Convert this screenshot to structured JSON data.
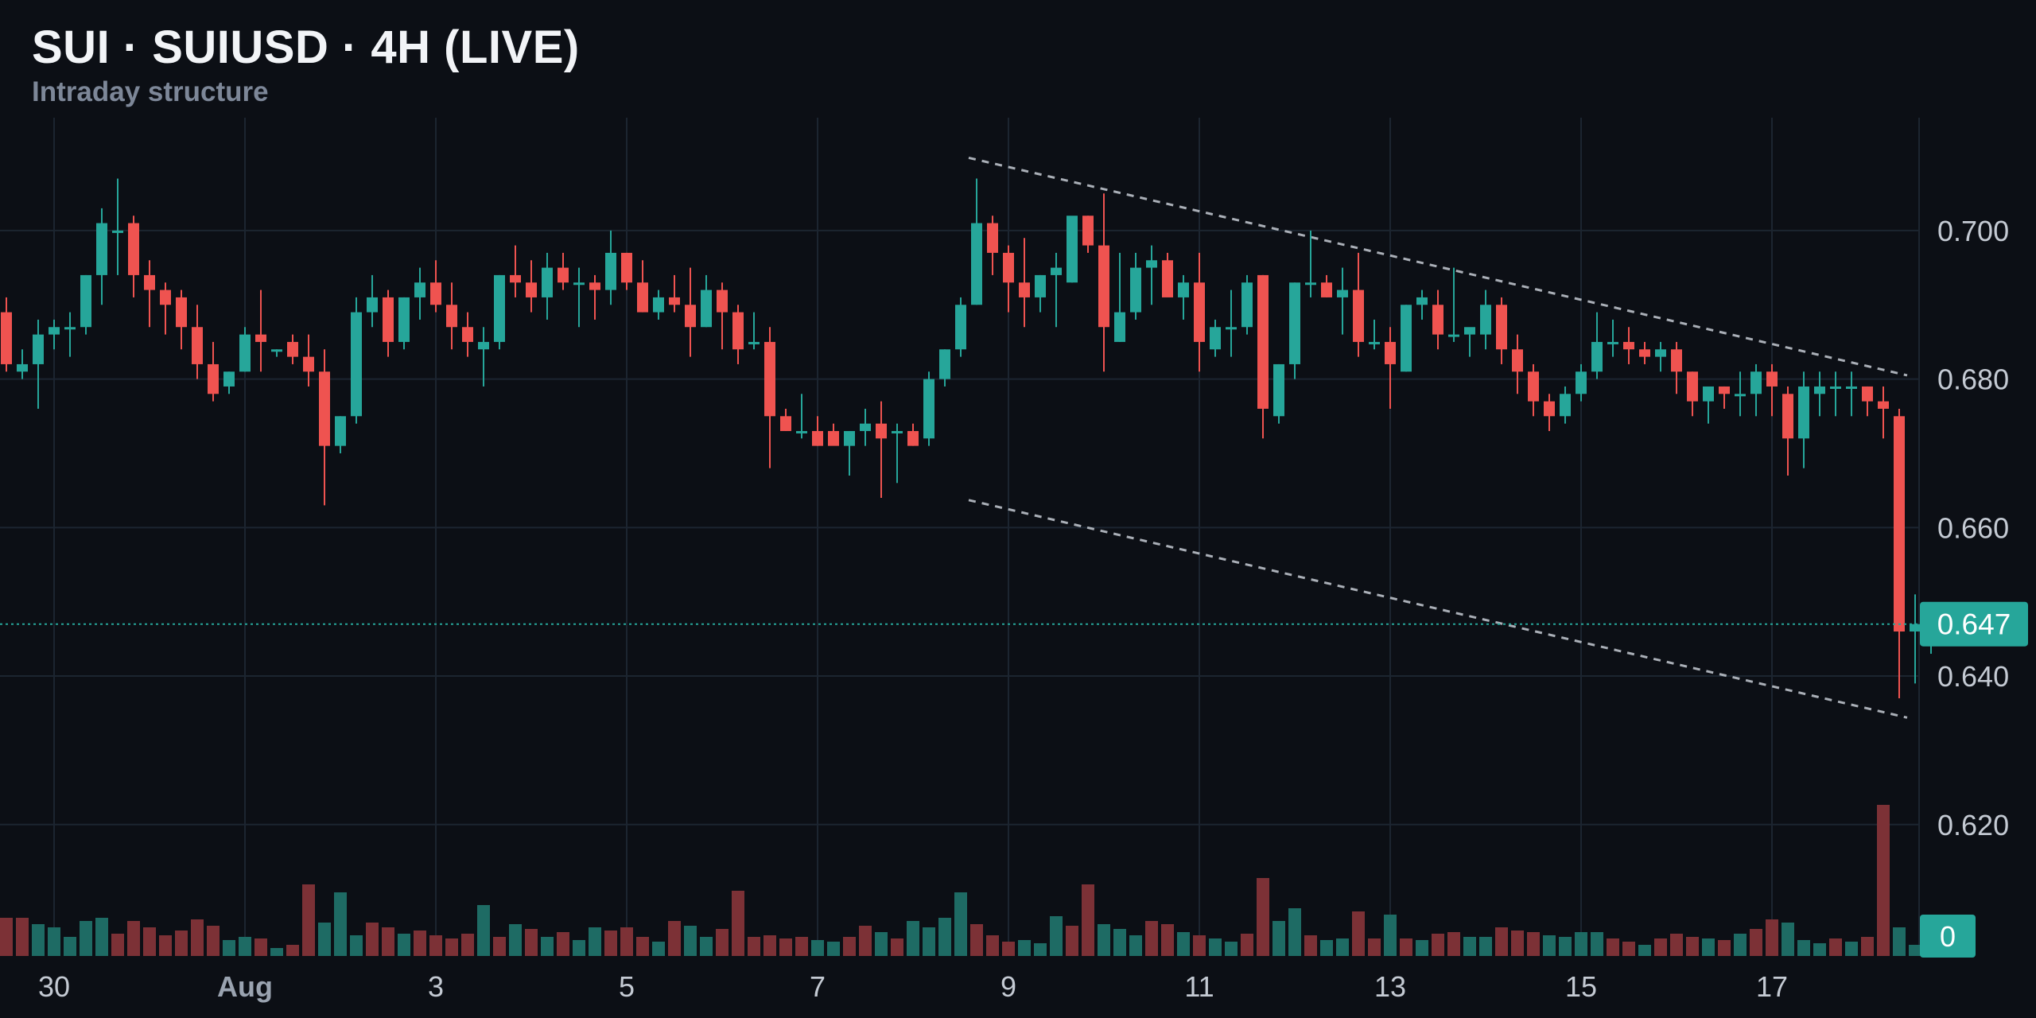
{
  "header": {
    "title": "SUI · SUIUSD · 4H (LIVE)",
    "subtitle": "Intraday structure"
  },
  "colors": {
    "background": "#0c0f15",
    "grid": "#1c2530",
    "up": "#26a69a",
    "down": "#ef5350",
    "volume_up": "#1e6b64",
    "volume_down": "#7c3136",
    "axis_text": "#c4cad3",
    "trendline": "#c6ccd4",
    "last_price_line": "#26a69a"
  },
  "chart_data": {
    "type": "candlestick",
    "symbol": "SUIUSD",
    "timeframe": "4H",
    "y_ticks": [
      0.62,
      0.64,
      0.66,
      0.68,
      0.7
    ],
    "y_tick_labels": [
      "0.620",
      "0.640",
      "0.660",
      "0.680",
      "0.700"
    ],
    "ylim": [
      0.6023,
      0.7152
    ],
    "x_tick_labels": [
      {
        "bar": 3,
        "label": "30"
      },
      {
        "bar": 15,
        "label": "Aug"
      },
      {
        "bar": 27,
        "label": "3"
      },
      {
        "bar": 39,
        "label": "5"
      },
      {
        "bar": 51,
        "label": "7"
      },
      {
        "bar": 63,
        "label": "9"
      },
      {
        "bar": 75,
        "label": "11"
      },
      {
        "bar": 87,
        "label": "13"
      },
      {
        "bar": 99,
        "label": "15"
      },
      {
        "bar": 111,
        "label": "17"
      }
    ],
    "last_price": 0.647,
    "last_price_label": "0.647",
    "volume_label": "0",
    "candles": [
      [
        0.689,
        0.691,
        0.681,
        0.682
      ],
      [
        0.681,
        0.684,
        0.68,
        0.682
      ],
      [
        0.682,
        0.688,
        0.676,
        0.686
      ],
      [
        0.686,
        0.688,
        0.684,
        0.687
      ],
      [
        0.687,
        0.689,
        0.683,
        0.687
      ],
      [
        0.687,
        0.694,
        0.686,
        0.694
      ],
      [
        0.694,
        0.703,
        0.69,
        0.701
      ],
      [
        0.7,
        0.707,
        0.694,
        0.7
      ],
      [
        0.701,
        0.702,
        0.691,
        0.694
      ],
      [
        0.694,
        0.696,
        0.687,
        0.692
      ],
      [
        0.692,
        0.693,
        0.686,
        0.69
      ],
      [
        0.691,
        0.692,
        0.684,
        0.687
      ],
      [
        0.687,
        0.69,
        0.68,
        0.682
      ],
      [
        0.682,
        0.685,
        0.677,
        0.678
      ],
      [
        0.679,
        0.681,
        0.678,
        0.681
      ],
      [
        0.681,
        0.687,
        0.681,
        0.686
      ],
      [
        0.686,
        0.692,
        0.681,
        0.685
      ],
      [
        0.684,
        0.684,
        0.683,
        0.684
      ],
      [
        0.685,
        0.686,
        0.682,
        0.683
      ],
      [
        0.683,
        0.686,
        0.679,
        0.681
      ],
      [
        0.681,
        0.684,
        0.663,
        0.671
      ],
      [
        0.671,
        0.675,
        0.67,
        0.675
      ],
      [
        0.675,
        0.691,
        0.674,
        0.689
      ],
      [
        0.689,
        0.694,
        0.687,
        0.691
      ],
      [
        0.691,
        0.692,
        0.683,
        0.685
      ],
      [
        0.685,
        0.691,
        0.684,
        0.691
      ],
      [
        0.691,
        0.695,
        0.688,
        0.693
      ],
      [
        0.693,
        0.696,
        0.689,
        0.69
      ],
      [
        0.69,
        0.693,
        0.684,
        0.687
      ],
      [
        0.687,
        0.689,
        0.683,
        0.685
      ],
      [
        0.684,
        0.687,
        0.679,
        0.685
      ],
      [
        0.685,
        0.694,
        0.684,
        0.694
      ],
      [
        0.694,
        0.698,
        0.691,
        0.693
      ],
      [
        0.693,
        0.696,
        0.689,
        0.691
      ],
      [
        0.691,
        0.697,
        0.688,
        0.695
      ],
      [
        0.695,
        0.697,
        0.692,
        0.693
      ],
      [
        0.693,
        0.695,
        0.687,
        0.693
      ],
      [
        0.693,
        0.694,
        0.688,
        0.692
      ],
      [
        0.692,
        0.7,
        0.69,
        0.697
      ],
      [
        0.697,
        0.697,
        0.692,
        0.693
      ],
      [
        0.693,
        0.696,
        0.689,
        0.689
      ],
      [
        0.689,
        0.692,
        0.688,
        0.691
      ],
      [
        0.691,
        0.694,
        0.689,
        0.69
      ],
      [
        0.69,
        0.695,
        0.683,
        0.687
      ],
      [
        0.687,
        0.694,
        0.687,
        0.692
      ],
      [
        0.692,
        0.693,
        0.684,
        0.689
      ],
      [
        0.689,
        0.69,
        0.682,
        0.684
      ],
      [
        0.685,
        0.689,
        0.684,
        0.685
      ],
      [
        0.685,
        0.687,
        0.668,
        0.675
      ],
      [
        0.675,
        0.676,
        0.673,
        0.673
      ],
      [
        0.673,
        0.678,
        0.672,
        0.673
      ],
      [
        0.673,
        0.675,
        0.671,
        0.671
      ],
      [
        0.673,
        0.674,
        0.672,
        0.671
      ],
      [
        0.671,
        0.673,
        0.667,
        0.673
      ],
      [
        0.673,
        0.676,
        0.671,
        0.674
      ],
      [
        0.674,
        0.677,
        0.664,
        0.672
      ],
      [
        0.673,
        0.674,
        0.666,
        0.673
      ],
      [
        0.673,
        0.674,
        0.671,
        0.671
      ],
      [
        0.672,
        0.681,
        0.671,
        0.68
      ],
      [
        0.68,
        0.684,
        0.679,
        0.684
      ],
      [
        0.684,
        0.691,
        0.683,
        0.69
      ],
      [
        0.69,
        0.707,
        0.69,
        0.701
      ],
      [
        0.701,
        0.702,
        0.694,
        0.697
      ],
      [
        0.697,
        0.698,
        0.689,
        0.693
      ],
      [
        0.693,
        0.699,
        0.687,
        0.691
      ],
      [
        0.691,
        0.694,
        0.689,
        0.694
      ],
      [
        0.694,
        0.697,
        0.687,
        0.695
      ],
      [
        0.693,
        0.701,
        0.693,
        0.702
      ],
      [
        0.702,
        0.702,
        0.697,
        0.698
      ],
      [
        0.698,
        0.705,
        0.681,
        0.687
      ],
      [
        0.685,
        0.697,
        0.685,
        0.689
      ],
      [
        0.689,
        0.697,
        0.688,
        0.695
      ],
      [
        0.695,
        0.698,
        0.69,
        0.696
      ],
      [
        0.696,
        0.697,
        0.692,
        0.691
      ],
      [
        0.691,
        0.694,
        0.688,
        0.693
      ],
      [
        0.693,
        0.697,
        0.681,
        0.685
      ],
      [
        0.684,
        0.688,
        0.683,
        0.687
      ],
      [
        0.687,
        0.692,
        0.683,
        0.687
      ],
      [
        0.687,
        0.694,
        0.686,
        0.693
      ],
      [
        0.694,
        0.694,
        0.672,
        0.676
      ],
      [
        0.675,
        0.682,
        0.674,
        0.682
      ],
      [
        0.682,
        0.693,
        0.68,
        0.693
      ],
      [
        0.693,
        0.7,
        0.691,
        0.693
      ],
      [
        0.693,
        0.694,
        0.691,
        0.691
      ],
      [
        0.691,
        0.695,
        0.686,
        0.692
      ],
      [
        0.692,
        0.697,
        0.683,
        0.685
      ],
      [
        0.685,
        0.688,
        0.684,
        0.685
      ],
      [
        0.685,
        0.687,
        0.676,
        0.682
      ],
      [
        0.681,
        0.69,
        0.681,
        0.69
      ],
      [
        0.69,
        0.692,
        0.688,
        0.691
      ],
      [
        0.69,
        0.692,
        0.684,
        0.686
      ],
      [
        0.686,
        0.695,
        0.685,
        0.686
      ],
      [
        0.686,
        0.686,
        0.683,
        0.687
      ],
      [
        0.686,
        0.692,
        0.684,
        0.69
      ],
      [
        0.69,
        0.691,
        0.682,
        0.684
      ],
      [
        0.684,
        0.686,
        0.678,
        0.681
      ],
      [
        0.681,
        0.682,
        0.675,
        0.677
      ],
      [
        0.677,
        0.678,
        0.673,
        0.675
      ],
      [
        0.675,
        0.679,
        0.674,
        0.678
      ],
      [
        0.678,
        0.682,
        0.677,
        0.681
      ],
      [
        0.681,
        0.689,
        0.68,
        0.685
      ],
      [
        0.685,
        0.688,
        0.683,
        0.685
      ],
      [
        0.685,
        0.687,
        0.682,
        0.684
      ],
      [
        0.684,
        0.685,
        0.682,
        0.683
      ],
      [
        0.683,
        0.685,
        0.681,
        0.684
      ],
      [
        0.684,
        0.685,
        0.678,
        0.681
      ],
      [
        0.681,
        0.681,
        0.675,
        0.677
      ],
      [
        0.677,
        0.678,
        0.674,
        0.679
      ],
      [
        0.679,
        0.679,
        0.676,
        0.678
      ],
      [
        0.678,
        0.681,
        0.675,
        0.678
      ],
      [
        0.678,
        0.682,
        0.675,
        0.681
      ],
      [
        0.681,
        0.682,
        0.675,
        0.679
      ],
      [
        0.678,
        0.679,
        0.667,
        0.672
      ],
      [
        0.672,
        0.681,
        0.668,
        0.679
      ],
      [
        0.678,
        0.681,
        0.675,
        0.679
      ],
      [
        0.679,
        0.681,
        0.675,
        0.679
      ],
      [
        0.679,
        0.681,
        0.675,
        0.679
      ],
      [
        0.679,
        0.679,
        0.675,
        0.677
      ],
      [
        0.677,
        0.679,
        0.672,
        0.676
      ],
      [
        0.675,
        0.676,
        0.637,
        0.646
      ],
      [
        0.646,
        0.651,
        0.639,
        0.647
      ],
      [
        0.647,
        0.648,
        0.643,
        0.647
      ]
    ],
    "volume": [
      {
        "v": 48,
        "up": false
      },
      {
        "v": 48,
        "up": false
      },
      {
        "v": 40,
        "up": true
      },
      {
        "v": 36,
        "up": true
      },
      {
        "v": 24,
        "up": true
      },
      {
        "v": 44,
        "up": true
      },
      {
        "v": 48,
        "up": true
      },
      {
        "v": 28,
        "up": false
      },
      {
        "v": 44,
        "up": false
      },
      {
        "v": 36,
        "up": false
      },
      {
        "v": 26,
        "up": false
      },
      {
        "v": 32,
        "up": false
      },
      {
        "v": 46,
        "up": false
      },
      {
        "v": 38,
        "up": false
      },
      {
        "v": 20,
        "up": true
      },
      {
        "v": 24,
        "up": true
      },
      {
        "v": 22,
        "up": false
      },
      {
        "v": 10,
        "up": true
      },
      {
        "v": 14,
        "up": false
      },
      {
        "v": 90,
        "up": false
      },
      {
        "v": 42,
        "up": true
      },
      {
        "v": 80,
        "up": true
      },
      {
        "v": 26,
        "up": true
      },
      {
        "v": 42,
        "up": false
      },
      {
        "v": 36,
        "up": false
      },
      {
        "v": 28,
        "up": true
      },
      {
        "v": 32,
        "up": false
      },
      {
        "v": 26,
        "up": false
      },
      {
        "v": 22,
        "up": false
      },
      {
        "v": 28,
        "up": false
      },
      {
        "v": 64,
        "up": true
      },
      {
        "v": 24,
        "up": false
      },
      {
        "v": 40,
        "up": true
      },
      {
        "v": 34,
        "up": false
      },
      {
        "v": 24,
        "up": true
      },
      {
        "v": 30,
        "up": false
      },
      {
        "v": 20,
        "up": true
      },
      {
        "v": 36,
        "up": true
      },
      {
        "v": 32,
        "up": false
      },
      {
        "v": 36,
        "up": false
      },
      {
        "v": 24,
        "up": false
      },
      {
        "v": 18,
        "up": true
      },
      {
        "v": 44,
        "up": false
      },
      {
        "v": 38,
        "up": true
      },
      {
        "v": 24,
        "up": true
      },
      {
        "v": 34,
        "up": false
      },
      {
        "v": 82,
        "up": false
      },
      {
        "v": 24,
        "up": false
      },
      {
        "v": 26,
        "up": false
      },
      {
        "v": 22,
        "up": false
      },
      {
        "v": 24,
        "up": false
      },
      {
        "v": 20,
        "up": true
      },
      {
        "v": 18,
        "up": true
      },
      {
        "v": 24,
        "up": false
      },
      {
        "v": 38,
        "up": false
      },
      {
        "v": 30,
        "up": true
      },
      {
        "v": 22,
        "up": false
      },
      {
        "v": 44,
        "up": true
      },
      {
        "v": 36,
        "up": true
      },
      {
        "v": 48,
        "up": true
      },
      {
        "v": 80,
        "up": true
      },
      {
        "v": 40,
        "up": false
      },
      {
        "v": 26,
        "up": false
      },
      {
        "v": 18,
        "up": false
      },
      {
        "v": 20,
        "up": true
      },
      {
        "v": 16,
        "up": true
      },
      {
        "v": 50,
        "up": true
      },
      {
        "v": 38,
        "up": false
      },
      {
        "v": 90,
        "up": false
      },
      {
        "v": 40,
        "up": true
      },
      {
        "v": 34,
        "up": true
      },
      {
        "v": 26,
        "up": true
      },
      {
        "v": 44,
        "up": false
      },
      {
        "v": 40,
        "up": false
      },
      {
        "v": 30,
        "up": true
      },
      {
        "v": 26,
        "up": false
      },
      {
        "v": 22,
        "up": true
      },
      {
        "v": 18,
        "up": true
      },
      {
        "v": 28,
        "up": false
      },
      {
        "v": 98,
        "up": false
      },
      {
        "v": 44,
        "up": true
      },
      {
        "v": 60,
        "up": true
      },
      {
        "v": 26,
        "up": false
      },
      {
        "v": 20,
        "up": true
      },
      {
        "v": 22,
        "up": true
      },
      {
        "v": 56,
        "up": false
      },
      {
        "v": 22,
        "up": false
      },
      {
        "v": 52,
        "up": true
      },
      {
        "v": 22,
        "up": false
      },
      {
        "v": 20,
        "up": true
      },
      {
        "v": 28,
        "up": false
      },
      {
        "v": 30,
        "up": false
      },
      {
        "v": 24,
        "up": true
      },
      {
        "v": 24,
        "up": true
      },
      {
        "v": 36,
        "up": false
      },
      {
        "v": 32,
        "up": false
      },
      {
        "v": 30,
        "up": false
      },
      {
        "v": 26,
        "up": true
      },
      {
        "v": 24,
        "up": true
      },
      {
        "v": 30,
        "up": true
      },
      {
        "v": 30,
        "up": true
      },
      {
        "v": 22,
        "up": false
      },
      {
        "v": 18,
        "up": false
      },
      {
        "v": 14,
        "up": true
      },
      {
        "v": 22,
        "up": false
      },
      {
        "v": 28,
        "up": false
      },
      {
        "v": 24,
        "up": false
      },
      {
        "v": 22,
        "up": true
      },
      {
        "v": 20,
        "up": false
      },
      {
        "v": 28,
        "up": true
      },
      {
        "v": 34,
        "up": false
      },
      {
        "v": 46,
        "up": false
      },
      {
        "v": 42,
        "up": true
      },
      {
        "v": 20,
        "up": true
      },
      {
        "v": 16,
        "up": true
      },
      {
        "v": 22,
        "up": false
      },
      {
        "v": 18,
        "up": true
      },
      {
        "v": 24,
        "up": false
      },
      {
        "v": 190,
        "up": false
      },
      {
        "v": 36,
        "up": true
      },
      {
        "v": 14,
        "up": true
      }
    ],
    "trendlines": [
      {
        "name": "upper",
        "from": {
          "bar": 60.5,
          "price": 0.7098
        },
        "to": {
          "bar": 119.5,
          "price": 0.6805
        }
      },
      {
        "name": "lower",
        "from": {
          "bar": 60.5,
          "price": 0.6637
        },
        "to": {
          "bar": 119.5,
          "price": 0.6344
        }
      }
    ]
  }
}
